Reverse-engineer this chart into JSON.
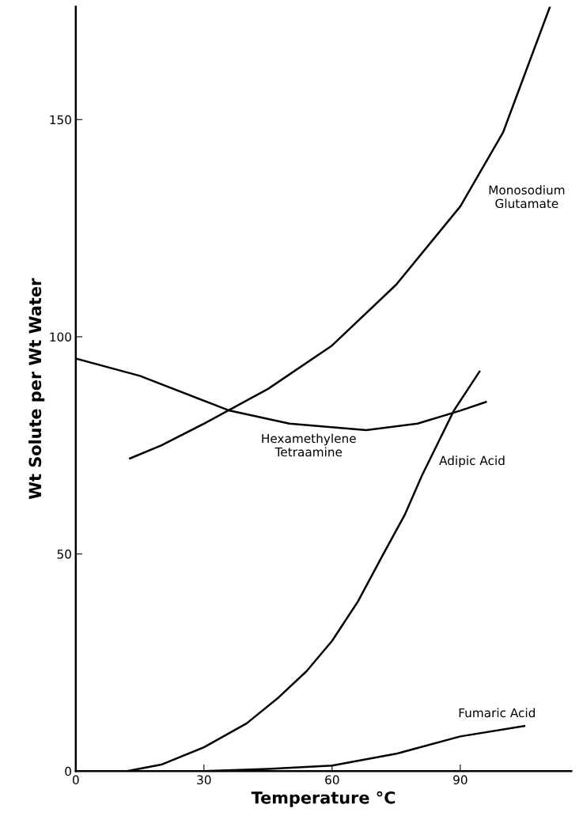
{
  "chart_data": {
    "type": "line",
    "xlabel": "Temperature °C",
    "ylabel": "Wt Solute per Wt Water",
    "xlim": [
      0,
      116
    ],
    "ylim": [
      0,
      176
    ],
    "xticks": [
      0,
      30,
      60,
      90
    ],
    "yticks": [
      0,
      50,
      100,
      150
    ],
    "grid": false,
    "legend": false,
    "marker": "none",
    "line_style": "solid",
    "series": [
      {
        "name": "Monosodium\nGlutamate",
        "color": "#000000",
        "x": [
          12.7,
          20,
          30,
          45,
          60,
          75,
          90,
          100,
          111
        ],
        "values": [
          72,
          75,
          80,
          88,
          98,
          112,
          130,
          147,
          176
        ]
      },
      {
        "name": "Hexamethylene\nTetraamine",
        "color": "#000000",
        "x": [
          0,
          15,
          36,
          50,
          68,
          80,
          90,
          96
        ],
        "values": [
          95,
          91,
          83,
          80,
          78.5,
          80,
          83,
          85
        ]
      },
      {
        "name": "Adipic Acid",
        "color": "#000000",
        "x": [
          12,
          20,
          30,
          40,
          47.5,
          54,
          60,
          66,
          72,
          77,
          81,
          85,
          88.5,
          94.5
        ],
        "values": [
          0,
          1.5,
          5.5,
          11,
          17,
          23,
          30,
          39,
          50,
          59,
          68,
          76,
          83,
          92
        ]
      },
      {
        "name": "Fumaric Acid",
        "color": "#000000",
        "x": [
          30,
          45,
          60,
          75,
          90,
          105
        ],
        "values": [
          0,
          0.5,
          1.3,
          4,
          8,
          10.4
        ]
      }
    ]
  }
}
